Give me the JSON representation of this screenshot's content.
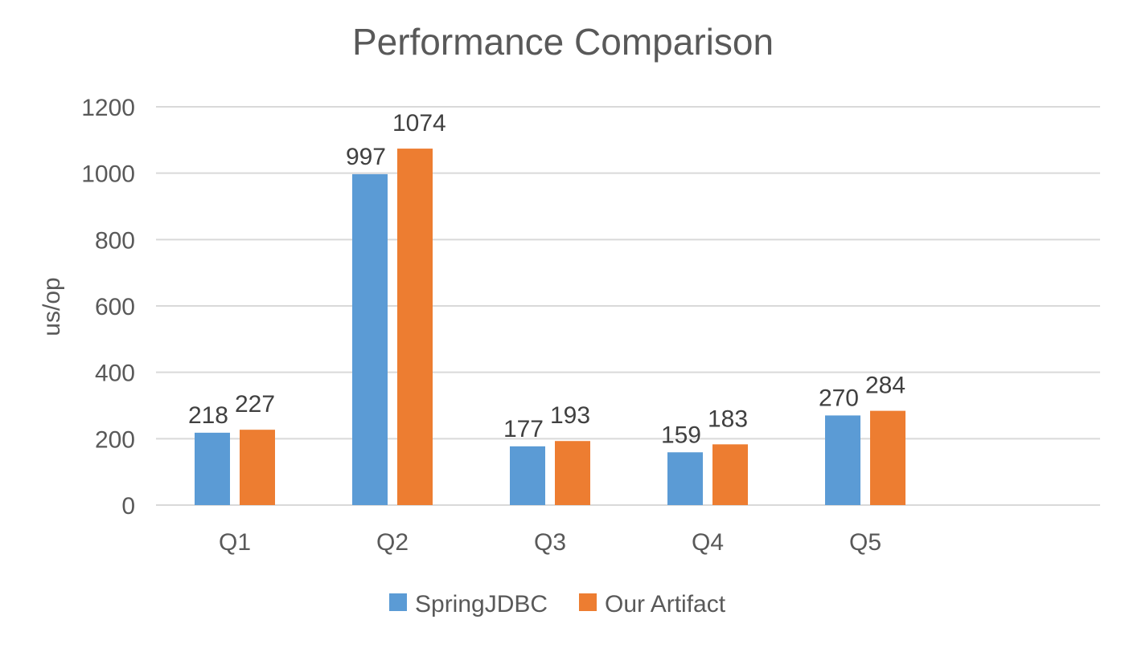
{
  "chart_data": {
    "type": "bar",
    "title": "Performance Comparison",
    "xlabel": "",
    "ylabel": "us/op",
    "categories": [
      "Q1",
      "Q2",
      "Q3",
      "Q4",
      "Q5"
    ],
    "series": [
      {
        "name": "SpringJDBC",
        "values": [
          218,
          997,
          177,
          159,
          270
        ],
        "color": "#5B9BD5"
      },
      {
        "name": "Our Artifact",
        "values": [
          227,
          1074,
          193,
          183,
          284
        ],
        "color": "#ED7D31"
      }
    ],
    "ylim": [
      0,
      1200
    ],
    "yticks": [
      0,
      200,
      400,
      600,
      800,
      1000,
      1200
    ],
    "grid": true,
    "legend": "bottom",
    "data_labels": true,
    "colors": {
      "text": "#595959",
      "title": "#595959",
      "grid": "#D9D9D9",
      "data_label": "#404040"
    }
  }
}
